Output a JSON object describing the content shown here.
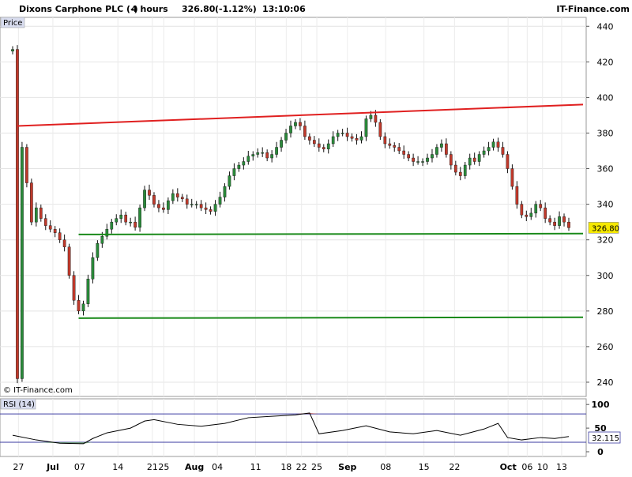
{
  "header": {
    "title": "Dixons Carphone PLC (-)",
    "interval": "4 hours",
    "last_price": "326.80",
    "change": "(-1.12%)",
    "time": "13:10:06",
    "brand": "IT-Finance.com"
  },
  "main_panel": {
    "tab_label": "Price",
    "copyright": "© IT-Finance.com",
    "price_tag": "326.80",
    "price_ticks": [
      "440",
      "420",
      "400",
      "380",
      "360",
      "340",
      "320",
      "300",
      "280",
      "260",
      "240"
    ]
  },
  "rsi_panel": {
    "tab_label": "RSI (14)",
    "value_tag": "32.115",
    "ticks": [
      "100",
      "50",
      "0"
    ]
  },
  "x_axis": {
    "labels": [
      "27",
      "Jul",
      "07",
      "14",
      "21",
      "25",
      "Aug",
      "04",
      "11",
      "18",
      "22",
      "25",
      "Sep",
      "08",
      "15",
      "22",
      "Oct",
      "06",
      "10",
      "13"
    ]
  },
  "colors": {
    "up_candle": "#2a8a3a",
    "down_candle": "#c0392b",
    "resistance_line": "#e02020",
    "support_line": "#1a8a1a",
    "rsi_line": "#000000",
    "rsi_band_line": "#3a3aa0",
    "rsi_overbought_fill": "#c0392b",
    "rsi_oversold_fill": "#5a9a5a",
    "price_tag_bg": "#f5e800",
    "rsi_tag_bg": "#ffffff"
  },
  "chart_data": {
    "type": "candlestick",
    "title": "Dixons Carphone PLC (-)",
    "interval": "4 hours",
    "ylim": [
      232,
      445
    ],
    "price_close_series": [
      [
        0,
        427
      ],
      [
        1,
        242
      ],
      [
        2,
        372
      ],
      [
        3,
        352
      ],
      [
        4,
        330
      ],
      [
        5,
        338
      ],
      [
        6,
        332
      ],
      [
        7,
        328
      ],
      [
        8,
        326
      ],
      [
        9,
        324
      ],
      [
        10,
        320
      ],
      [
        11,
        316
      ],
      [
        12,
        300
      ],
      [
        13,
        286
      ],
      [
        14,
        280
      ],
      [
        15,
        284
      ],
      [
        16,
        298
      ],
      [
        17,
        310
      ],
      [
        18,
        318
      ],
      [
        19,
        322
      ],
      [
        20,
        326
      ],
      [
        21,
        330
      ],
      [
        22,
        332
      ],
      [
        23,
        334
      ],
      [
        24,
        330
      ],
      [
        25,
        330
      ],
      [
        26,
        327
      ],
      [
        27,
        338
      ],
      [
        28,
        348
      ],
      [
        29,
        345
      ],
      [
        30,
        340
      ],
      [
        31,
        338
      ],
      [
        32,
        337
      ],
      [
        33,
        342
      ],
      [
        34,
        346
      ],
      [
        35,
        344
      ],
      [
        36,
        343
      ],
      [
        37,
        340
      ],
      [
        38,
        340
      ],
      [
        39,
        340
      ],
      [
        40,
        338
      ],
      [
        41,
        337
      ],
      [
        42,
        336
      ],
      [
        43,
        340
      ],
      [
        44,
        344
      ],
      [
        45,
        350
      ],
      [
        46,
        356
      ],
      [
        47,
        360
      ],
      [
        48,
        362
      ],
      [
        49,
        364
      ],
      [
        50,
        367
      ],
      [
        51,
        368
      ],
      [
        52,
        369
      ],
      [
        53,
        369
      ],
      [
        54,
        366
      ],
      [
        55,
        368
      ],
      [
        56,
        372
      ],
      [
        57,
        376
      ],
      [
        58,
        380
      ],
      [
        59,
        384
      ],
      [
        60,
        386
      ],
      [
        61,
        384
      ],
      [
        62,
        378
      ],
      [
        63,
        376
      ],
      [
        64,
        374
      ],
      [
        65,
        372
      ],
      [
        66,
        371
      ],
      [
        67,
        374
      ],
      [
        68,
        378
      ],
      [
        69,
        380
      ],
      [
        70,
        380
      ],
      [
        71,
        378
      ],
      [
        72,
        377
      ],
      [
        73,
        376
      ],
      [
        74,
        378
      ],
      [
        75,
        388
      ],
      [
        76,
        390
      ],
      [
        77,
        386
      ],
      [
        78,
        378
      ],
      [
        79,
        374
      ],
      [
        80,
        373
      ],
      [
        81,
        372
      ],
      [
        82,
        370
      ],
      [
        83,
        368
      ],
      [
        84,
        366
      ],
      [
        85,
        364
      ],
      [
        86,
        364
      ],
      [
        87,
        364
      ],
      [
        88,
        366
      ],
      [
        89,
        368
      ],
      [
        90,
        372
      ],
      [
        91,
        374
      ],
      [
        92,
        368
      ],
      [
        93,
        362
      ],
      [
        94,
        358
      ],
      [
        95,
        356
      ],
      [
        96,
        362
      ],
      [
        97,
        366
      ],
      [
        98,
        364
      ],
      [
        99,
        368
      ],
      [
        100,
        370
      ],
      [
        101,
        372
      ],
      [
        102,
        375
      ],
      [
        103,
        372
      ],
      [
        104,
        368
      ],
      [
        105,
        360
      ],
      [
        106,
        350
      ],
      [
        107,
        340
      ],
      [
        108,
        334
      ],
      [
        109,
        333
      ],
      [
        110,
        335
      ],
      [
        111,
        340
      ],
      [
        112,
        338
      ],
      [
        113,
        332
      ],
      [
        114,
        330
      ],
      [
        115,
        328
      ],
      [
        116,
        333
      ],
      [
        117,
        330
      ],
      [
        118,
        326.8
      ]
    ],
    "trendlines": [
      {
        "type": "resistance",
        "from": [
          1,
          384
        ],
        "to": [
          126,
          396
        ]
      },
      {
        "type": "support",
        "from": [
          14,
          323
        ],
        "to": [
          126,
          323.5
        ]
      },
      {
        "type": "support",
        "from": [
          14,
          276
        ],
        "to": [
          126,
          276.5
        ]
      }
    ],
    "rsi": {
      "period": 14,
      "ylim": [
        -10,
        112
      ],
      "overbought": 80,
      "oversold": 20,
      "values": [
        [
          0,
          35
        ],
        [
          5,
          25
        ],
        [
          10,
          18
        ],
        [
          15,
          17
        ],
        [
          17,
          28
        ],
        [
          20,
          40
        ],
        [
          25,
          50
        ],
        [
          28,
          65
        ],
        [
          30,
          68
        ],
        [
          35,
          58
        ],
        [
          40,
          54
        ],
        [
          45,
          60
        ],
        [
          50,
          72
        ],
        [
          55,
          75
        ],
        [
          60,
          78
        ],
        [
          63,
          82
        ],
        [
          65,
          38
        ],
        [
          70,
          45
        ],
        [
          75,
          55
        ],
        [
          80,
          42
        ],
        [
          85,
          38
        ],
        [
          90,
          45
        ],
        [
          95,
          35
        ],
        [
          100,
          48
        ],
        [
          103,
          60
        ],
        [
          105,
          30
        ],
        [
          108,
          25
        ],
        [
          112,
          30
        ],
        [
          115,
          28
        ],
        [
          118,
          32.115
        ]
      ],
      "last": 32.115
    }
  }
}
